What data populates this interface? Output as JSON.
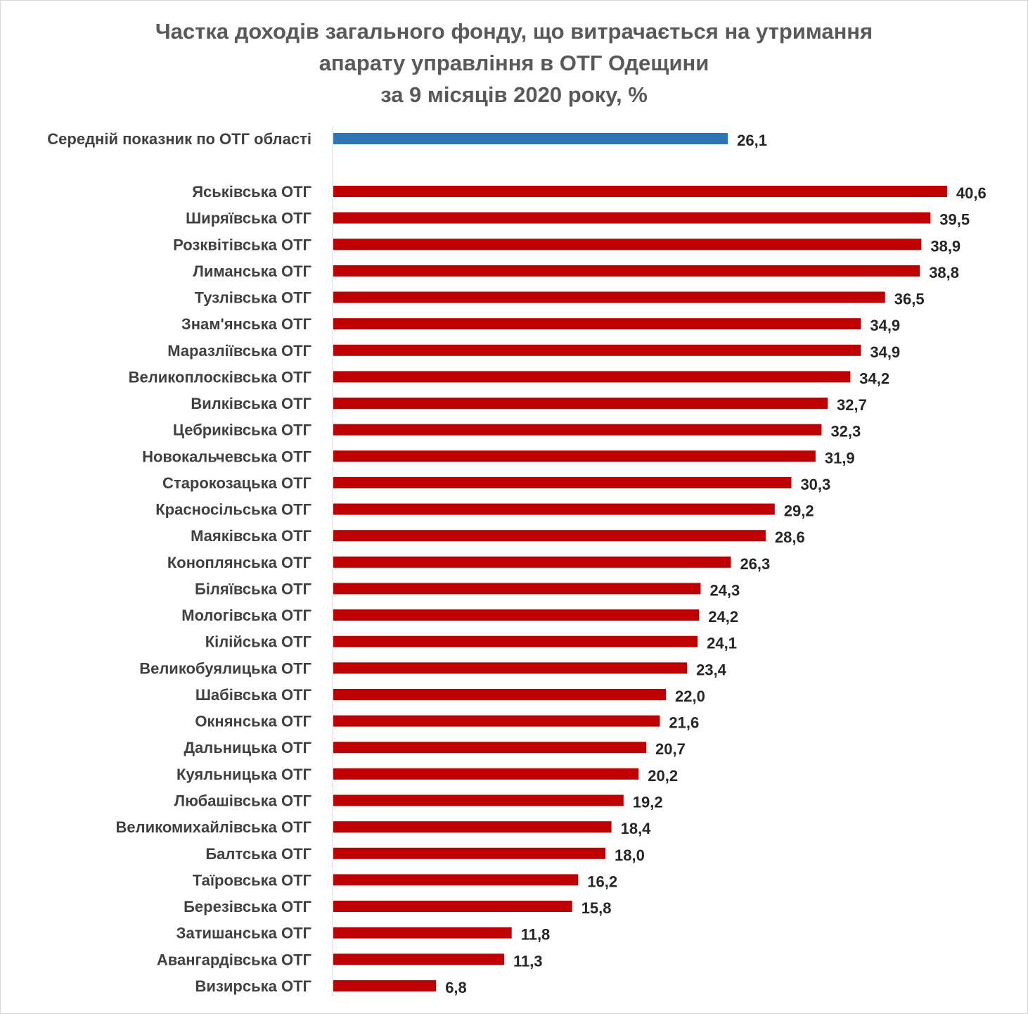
{
  "chart_data": {
    "type": "bar",
    "orientation": "horizontal",
    "title": [
      "Частка доходів загального фонду, що витрачається на утримання",
      "апарату управління в ОТГ Одещини",
      "за 9 місяців 2020 року, %"
    ],
    "xlabel": "",
    "ylabel": "",
    "xlim": [
      0,
      43
    ],
    "grid": false,
    "legend": "none",
    "average": {
      "category": "Середній показник по ОТГ області",
      "value": 26.1,
      "label": "26,1",
      "color": "#2e75b6"
    },
    "bar_color": "#c00000",
    "categories": [
      "Яськівська ОТГ",
      "Ширяївська  ОТГ",
      "Розквітівська ОТГ",
      "Лиманська ОТГ",
      "Тузлівська ОТГ",
      "Знам'янська ОТГ",
      "Маразліївська ОТГ",
      "Великоплосківська ОТГ",
      "Вилківська ОТГ",
      "Цебриківська ОТГ",
      "Новокальчевська ОТГ",
      "Старокозацька ОТГ",
      "Красносільська  ОТГ",
      "Маяківська ОТГ",
      "Коноплянська ОТГ",
      "Біляївська ОТГ",
      "Мологівська ОТГ",
      "Кілійська ОТГ",
      "Великобуялицька ОТГ",
      "Шабівська ОТГ",
      "Окнянська ОТГ",
      "Дальницька ОТГ",
      "Куяльницька ОТГ",
      "Любашівська ОТГ",
      "Великомихайлівська ОТГ",
      "Балтська ОТГ",
      "Таїровська ОТГ",
      "Березівська ОТГ",
      "Затишанська ОТГ",
      "Авангардівська ОТГ",
      "Визирська ОТГ"
    ],
    "values": [
      40.6,
      39.5,
      38.9,
      38.8,
      36.5,
      34.9,
      34.9,
      34.2,
      32.7,
      32.3,
      31.9,
      30.3,
      29.2,
      28.6,
      26.3,
      24.3,
      24.2,
      24.1,
      23.4,
      22.0,
      21.6,
      20.7,
      20.2,
      19.2,
      18.4,
      18.0,
      16.2,
      15.8,
      11.8,
      11.3,
      6.8
    ],
    "labels": [
      "40,6",
      "39,5",
      "38,9",
      "38,8",
      "36,5",
      "34,9",
      "34,9",
      "34,2",
      "32,7",
      "32,3",
      "31,9",
      "30,3",
      "29,2",
      "28,6",
      "26,3",
      "24,3",
      "24,2",
      "24,1",
      "23,4",
      "22,0",
      "21,6",
      "20,7",
      "20,2",
      "19,2",
      "18,4",
      "18,0",
      "16,2",
      "15,8",
      "11,8",
      "11,3",
      "6,8"
    ]
  }
}
